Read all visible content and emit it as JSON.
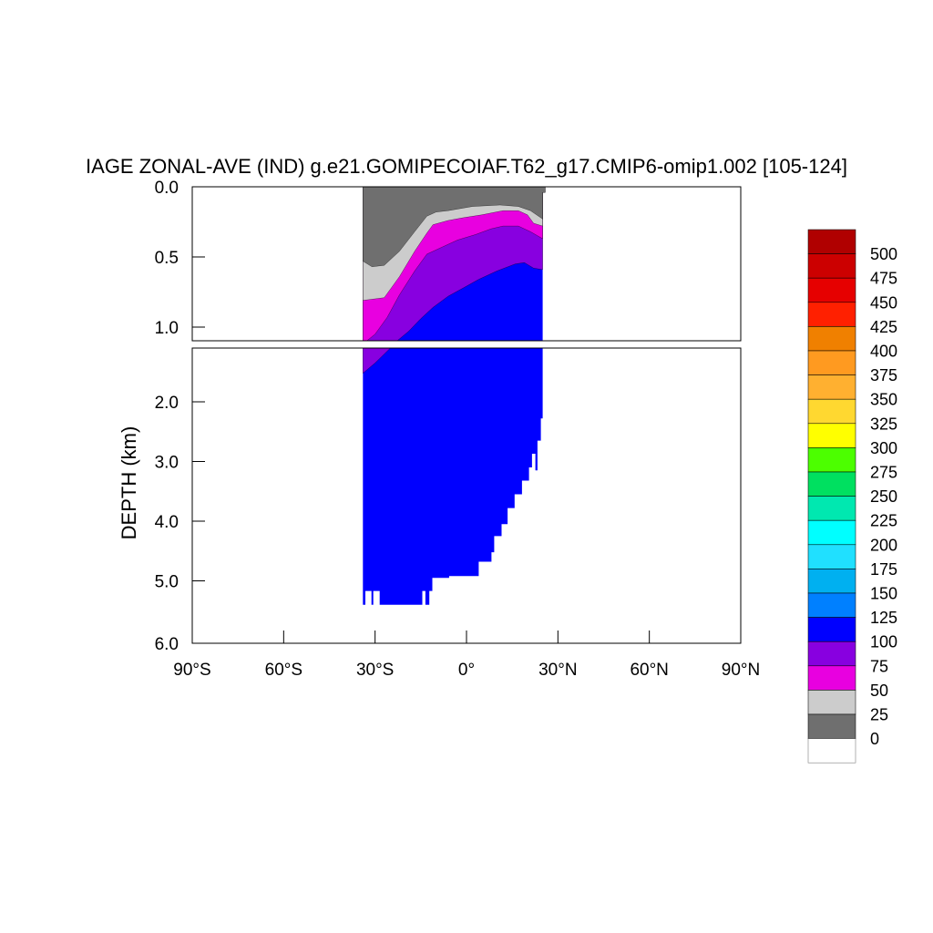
{
  "chart_data": {
    "type": "heatmap",
    "title": "IAGE ZONAL-AVE (IND) g.e21.GOMIPECOIAF.T62_g17.CMIP6-omip1.002 [105-124]",
    "ylabel": "DEPTH (km)",
    "xlabel": "",
    "x_ticks": [
      "90°S",
      "60°S",
      "30°S",
      "0°",
      "30°N",
      "60°N",
      "90°N"
    ],
    "x_tick_values": [
      -90,
      -60,
      -30,
      0,
      30,
      60,
      90
    ],
    "x_range": [
      -90,
      90
    ],
    "upper_panel": {
      "y_range": [
        0,
        1.1
      ],
      "y_ticks": [
        "0.0",
        "0.5",
        "1.0"
      ],
      "y_tick_values": [
        0,
        0.5,
        1.0
      ]
    },
    "lower_panel": {
      "y_range": [
        1.0,
        6.0
      ],
      "y_ticks": [
        "2.0",
        "3.0",
        "4.0",
        "5.0",
        "6.0"
      ],
      "y_tick_values": [
        2,
        3,
        4,
        5,
        6
      ]
    },
    "colorbar": {
      "levels": [
        "500",
        "475",
        "450",
        "425",
        "400",
        "375",
        "350",
        "325",
        "300",
        "275",
        "250",
        "225",
        "200",
        "175",
        "150",
        "125",
        "100",
        "75",
        "50",
        "25",
        "0"
      ],
      "colors": [
        "#b00000",
        "#cc0000",
        "#e60000",
        "#ff2000",
        "#f08000",
        "#ff9a20",
        "#ffb030",
        "#ffd830",
        "#ffff00",
        "#4cff00",
        "#00e060",
        "#00e8b0",
        "#00ffff",
        "#20e0ff",
        "#00b0f0",
        "#0080ff",
        "#0000ff",
        "#8800e0",
        "#e800e0",
        "#cccccc",
        "#6f6f6f",
        "#ffffff"
      ]
    },
    "contours": {
      "upper": [
        {
          "band": "0-25",
          "color": "#6f6f6f",
          "top": [
            [
              -34,
              0
            ],
            [
              25.8,
              0
            ],
            [
              25.8,
              0.04
            ],
            [
              25,
              0.04
            ]
          ],
          "bottom": [
            [
              -34,
              0.53
            ],
            [
              -31,
              0.57
            ],
            [
              -27,
              0.56
            ],
            [
              -22,
              0.46
            ],
            [
              -17,
              0.32
            ],
            [
              -13,
              0.21
            ],
            [
              -10,
              0.18
            ],
            [
              -6,
              0.17
            ],
            [
              2,
              0.14
            ],
            [
              11,
              0.13
            ],
            [
              17,
              0.14
            ],
            [
              21,
              0.17
            ],
            [
              25,
              0.23
            ]
          ]
        },
        {
          "band": "25-50",
          "color": "#cccccc",
          "bottom": [
            [
              -34,
              0.81
            ],
            [
              -27,
              0.79
            ],
            [
              -22,
              0.64
            ],
            [
              -17,
              0.46
            ],
            [
              -13,
              0.33
            ],
            [
              -11,
              0.27
            ],
            [
              -6,
              0.24
            ],
            [
              -1,
              0.22
            ],
            [
              5,
              0.2
            ],
            [
              12,
              0.17
            ],
            [
              17,
              0.17
            ],
            [
              20,
              0.2
            ],
            [
              22,
              0.26
            ],
            [
              25,
              0.28
            ]
          ]
        },
        {
          "band": "50-75",
          "color": "#e800e0",
          "bottom": [
            [
              -34,
              1.12
            ],
            [
              -30,
              1.05
            ],
            [
              -26,
              0.93
            ],
            [
              -22,
              0.77
            ],
            [
              -17,
              0.6
            ],
            [
              -13,
              0.48
            ],
            [
              -8,
              0.43
            ],
            [
              -3,
              0.38
            ],
            [
              3,
              0.34
            ],
            [
              8,
              0.3
            ],
            [
              12,
              0.28
            ],
            [
              17,
              0.28
            ],
            [
              21,
              0.32
            ],
            [
              25,
              0.37
            ]
          ]
        },
        {
          "band": "75-100",
          "color": "#8800e0",
          "bottom": [
            [
              -24,
              1.12
            ],
            [
              -19,
              1.03
            ],
            [
              -15,
              0.94
            ],
            [
              -11,
              0.86
            ],
            [
              -6,
              0.78
            ],
            [
              -1,
              0.72
            ],
            [
              4,
              0.66
            ],
            [
              10,
              0.6
            ],
            [
              16,
              0.55
            ],
            [
              19,
              0.54
            ],
            [
              22,
              0.58
            ],
            [
              25,
              0.59
            ]
          ]
        }
      ],
      "lower": [
        {
          "band": "75-100",
          "color": "#8800e0",
          "bottom": [
            [
              -34,
              1.52
            ],
            [
              -30,
              1.35
            ],
            [
              -27,
              1.2
            ],
            [
              -24,
              1.05
            ]
          ]
        }
      ],
      "land_edge": [
        [
          -34,
          5.4
        ],
        [
          -33.2,
          5.4
        ],
        [
          -33.2,
          5.17
        ],
        [
          -31.2,
          5.17
        ],
        [
          -31.2,
          5.4
        ],
        [
          -30.6,
          5.4
        ],
        [
          -30.6,
          5.17
        ],
        [
          -28.5,
          5.17
        ],
        [
          -28.5,
          5.4
        ],
        [
          -23.7,
          5.4
        ],
        [
          -23.7,
          5.4
        ],
        [
          -14.5,
          5.4
        ],
        [
          -14.5,
          5.17
        ],
        [
          -13.5,
          5.17
        ],
        [
          -13.5,
          5.4
        ],
        [
          -12.2,
          5.4
        ],
        [
          -12.2,
          5.17
        ],
        [
          -11.2,
          5.17
        ],
        [
          -11.2,
          4.95
        ],
        [
          -5.7,
          4.95
        ],
        [
          -5.7,
          4.92
        ],
        [
          4,
          4.92
        ],
        [
          4,
          4.68
        ],
        [
          8.2,
          4.68
        ],
        [
          8.2,
          4.52
        ],
        [
          9.1,
          4.52
        ],
        [
          9.1,
          4.25
        ],
        [
          11.5,
          4.25
        ],
        [
          11.5,
          4.05
        ],
        [
          13.5,
          4.05
        ],
        [
          13.5,
          3.78
        ],
        [
          15.8,
          3.78
        ],
        [
          15.8,
          3.55
        ],
        [
          18.2,
          3.55
        ],
        [
          18.2,
          3.32
        ],
        [
          20.5,
          3.32
        ],
        [
          20.5,
          3.1
        ],
        [
          21.5,
          3.1
        ],
        [
          21.5,
          2.87
        ],
        [
          22.6,
          2.87
        ],
        [
          22.6,
          3.15
        ],
        [
          23.3,
          3.15
        ],
        [
          23.3,
          2.65
        ],
        [
          24.4,
          2.65
        ],
        [
          24.4,
          2.28
        ],
        [
          25,
          2.28
        ],
        [
          25,
          1.0
        ]
      ]
    }
  }
}
